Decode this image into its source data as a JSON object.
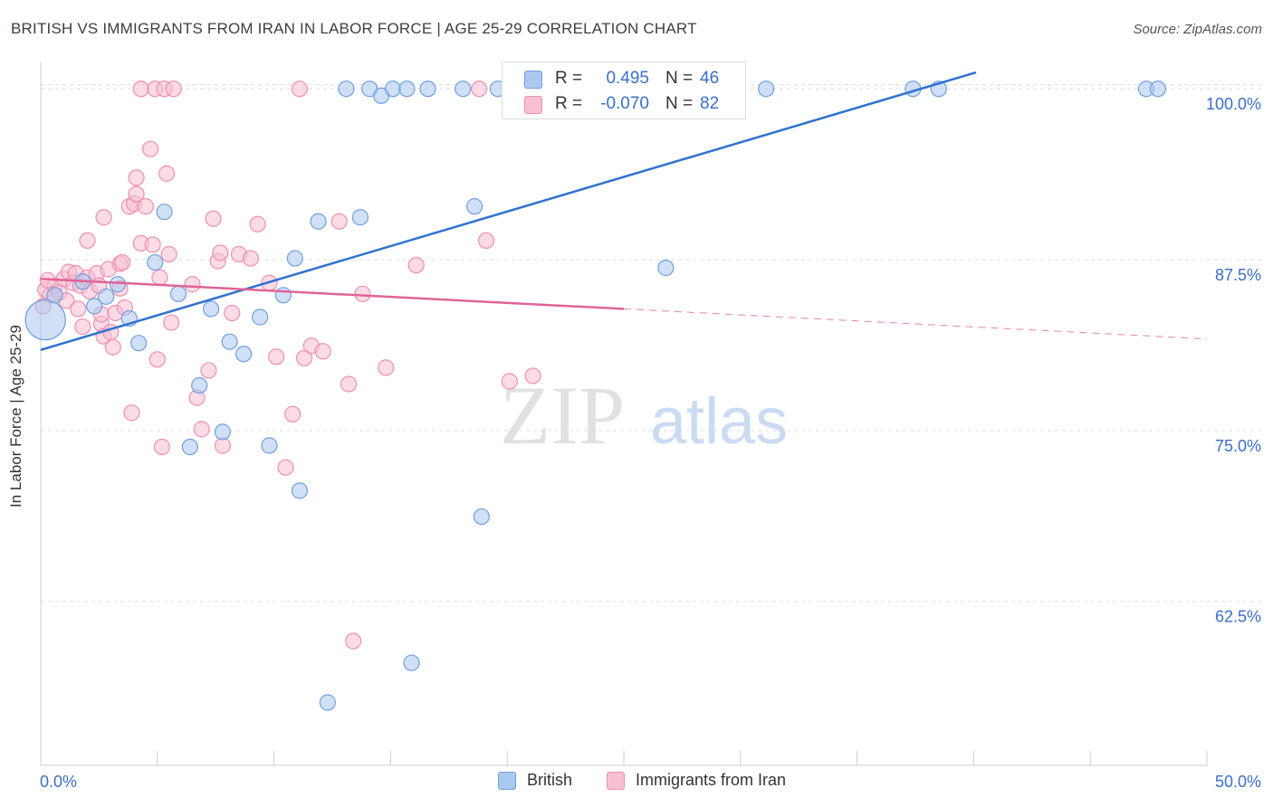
{
  "header": {
    "title": "BRITISH VS IMMIGRANTS FROM IRAN IN LABOR FORCE | AGE 25-29 CORRELATION CHART",
    "source": "Source: ZipAtlas.com"
  },
  "watermark": {
    "zip": "ZIP",
    "atlas": "atlas"
  },
  "legend_top": {
    "rows": [
      {
        "r_label": "R =",
        "r_value": "0.495",
        "n_label": "N =",
        "n_value": "46"
      },
      {
        "r_label": "R =",
        "r_value": "-0.070",
        "n_label": "N =",
        "n_value": "82"
      }
    ]
  },
  "legend_bottom": {
    "british": "British",
    "iran": "Immigrants from Iran"
  },
  "colors": {
    "british_fill": "#aac8f0",
    "british_stroke": "#6f9fe0",
    "british_line": "#2f72d0",
    "iran_fill": "#f7bfd2",
    "iran_stroke": "#ee8fb0",
    "iran_line": "#e06496",
    "axis_text": "#3a6fc8",
    "grid": "#dddddd"
  },
  "chart_data": {
    "type": "scatter",
    "title": "BRITISH VS IMMIGRANTS FROM IRAN IN LABOR FORCE | AGE 25-29 CORRELATION CHART",
    "xlabel": "",
    "ylabel": "In Labor Force | Age 25-29",
    "xlim": [
      0,
      50
    ],
    "ylim": [
      50.5,
      102
    ],
    "x_tick_labels": [
      "0.0%",
      "50.0%"
    ],
    "y_ticks": [
      62.5,
      75.0,
      87.5,
      100.0
    ],
    "y_tick_labels": [
      "62.5%",
      "75.0%",
      "87.5%",
      "100.0%"
    ],
    "grid": true,
    "legend_placement": "bottom",
    "series": [
      {
        "name": "British",
        "r": 0.495,
        "n": 46,
        "trend": {
          "x": [
            0,
            40.1
          ],
          "y": [
            80.9,
            101.2
          ]
        },
        "points": [
          [
            0.2,
            83.1,
            2.6
          ],
          [
            0.6,
            84.9,
            1
          ],
          [
            1.8,
            85.9,
            1
          ],
          [
            2.8,
            84.8,
            1
          ],
          [
            3.3,
            85.7,
            1
          ],
          [
            2.3,
            84.1,
            1
          ],
          [
            3.8,
            83.2,
            1
          ],
          [
            4.2,
            81.4,
            1
          ],
          [
            4.9,
            87.3,
            1
          ],
          [
            5.3,
            91.0,
            1
          ],
          [
            5.9,
            85.0,
            1
          ],
          [
            6.4,
            73.8,
            1
          ],
          [
            6.8,
            78.3,
            1
          ],
          [
            7.3,
            83.9,
            1
          ],
          [
            8.1,
            81.5,
            1
          ],
          [
            7.8,
            74.9,
            1
          ],
          [
            8.7,
            80.6,
            1
          ],
          [
            9.4,
            83.3,
            1
          ],
          [
            9.8,
            73.9,
            1
          ],
          [
            10.4,
            84.9,
            1
          ],
          [
            10.9,
            87.6,
            1
          ],
          [
            11.1,
            70.6,
            1
          ],
          [
            11.9,
            90.3,
            1
          ],
          [
            12.3,
            55.1,
            1
          ],
          [
            13.1,
            100.0,
            1
          ],
          [
            13.7,
            90.6,
            1
          ],
          [
            14.1,
            100.0,
            1
          ],
          [
            14.6,
            99.5,
            1
          ],
          [
            15.1,
            100.0,
            1
          ],
          [
            15.7,
            100.0,
            1
          ],
          [
            15.9,
            58.0,
            1
          ],
          [
            16.6,
            100.0,
            1
          ],
          [
            18.1,
            100.0,
            1
          ],
          [
            18.6,
            91.4,
            1
          ],
          [
            18.9,
            68.7,
            1
          ],
          [
            19.6,
            100.0,
            1
          ],
          [
            21.1,
            100.0,
            1
          ],
          [
            24.1,
            100.0,
            1
          ],
          [
            25.8,
            100.0,
            1
          ],
          [
            26.8,
            86.9,
            1
          ],
          [
            28.1,
            100.0,
            1
          ],
          [
            31.1,
            100.0,
            1
          ],
          [
            37.4,
            100.0,
            1
          ],
          [
            38.5,
            100.0,
            1
          ],
          [
            47.4,
            100.0,
            1
          ],
          [
            47.9,
            100.0,
            1
          ]
        ]
      },
      {
        "name": "Immigrants from Iran",
        "r": -0.07,
        "n": 82,
        "trend": {
          "x": [
            0,
            25.0
          ],
          "y": [
            86.1,
            83.9
          ]
        },
        "trend_dashed": {
          "x": [
            25.0,
            50.0
          ],
          "y": [
            83.9,
            81.7
          ]
        },
        "points": [
          [
            0.2,
            85.3,
            1
          ],
          [
            0.4,
            84.9,
            1
          ],
          [
            0.6,
            85.6,
            1
          ],
          [
            0.8,
            85.1,
            1
          ],
          [
            1.0,
            86.1,
            1
          ],
          [
            1.1,
            84.5,
            1
          ],
          [
            1.2,
            86.6,
            1
          ],
          [
            1.4,
            85.8,
            1
          ],
          [
            1.5,
            86.5,
            1
          ],
          [
            1.6,
            83.9,
            1
          ],
          [
            1.7,
            85.6,
            1
          ],
          [
            1.8,
            82.6,
            1
          ],
          [
            2.0,
            86.2,
            1
          ],
          [
            2.1,
            85.2,
            1
          ],
          [
            2.0,
            88.9,
            1
          ],
          [
            2.4,
            86.5,
            1
          ],
          [
            2.5,
            85.6,
            1
          ],
          [
            2.6,
            82.8,
            1
          ],
          [
            2.6,
            83.5,
            1
          ],
          [
            2.7,
            81.9,
            1
          ],
          [
            2.7,
            90.6,
            1
          ],
          [
            2.9,
            86.8,
            1
          ],
          [
            3.0,
            82.2,
            1
          ],
          [
            3.1,
            81.1,
            1
          ],
          [
            3.2,
            83.6,
            1
          ],
          [
            3.4,
            85.4,
            1
          ],
          [
            3.4,
            87.2,
            1
          ],
          [
            3.5,
            87.3,
            1
          ],
          [
            3.6,
            84.0,
            1
          ],
          [
            3.8,
            91.4,
            1
          ],
          [
            3.9,
            76.3,
            1
          ],
          [
            4.0,
            91.6,
            1
          ],
          [
            4.1,
            92.3,
            1
          ],
          [
            4.1,
            93.5,
            1
          ],
          [
            4.3,
            88.7,
            1
          ],
          [
            4.3,
            100.0,
            1
          ],
          [
            4.5,
            91.4,
            1
          ],
          [
            4.7,
            95.6,
            1
          ],
          [
            4.8,
            88.6,
            1
          ],
          [
            4.9,
            100.0,
            1
          ],
          [
            5.0,
            80.2,
            1
          ],
          [
            5.1,
            86.2,
            1
          ],
          [
            5.2,
            73.8,
            1
          ],
          [
            5.3,
            100.0,
            1
          ],
          [
            5.4,
            93.8,
            1
          ],
          [
            5.5,
            87.9,
            1
          ],
          [
            5.6,
            82.9,
            1
          ],
          [
            5.7,
            100.0,
            1
          ],
          [
            6.5,
            85.7,
            1
          ],
          [
            6.7,
            77.4,
            1
          ],
          [
            6.9,
            75.1,
            1
          ],
          [
            7.2,
            79.4,
            1
          ],
          [
            7.4,
            90.5,
            1
          ],
          [
            7.6,
            87.4,
            1
          ],
          [
            7.7,
            88.0,
            1
          ],
          [
            7.8,
            73.9,
            1
          ],
          [
            8.2,
            83.6,
            1
          ],
          [
            8.5,
            87.9,
            1
          ],
          [
            9.0,
            87.6,
            1
          ],
          [
            9.3,
            90.1,
            1
          ],
          [
            9.8,
            85.8,
            1
          ],
          [
            10.1,
            80.4,
            1
          ],
          [
            10.5,
            72.3,
            1
          ],
          [
            10.8,
            76.2,
            1
          ],
          [
            11.1,
            100.0,
            1
          ],
          [
            11.3,
            80.3,
            1
          ],
          [
            11.6,
            81.2,
            1
          ],
          [
            12.1,
            80.8,
            1
          ],
          [
            12.8,
            90.3,
            1
          ],
          [
            13.2,
            78.4,
            1
          ],
          [
            13.4,
            59.6,
            1
          ],
          [
            13.8,
            85.0,
            1
          ],
          [
            14.8,
            79.6,
            1
          ],
          [
            16.1,
            87.1,
            1
          ],
          [
            18.8,
            100.0,
            1
          ],
          [
            19.1,
            88.9,
            1
          ],
          [
            20.1,
            78.6,
            1
          ],
          [
            21.1,
            79.0,
            1
          ],
          [
            26.1,
            100.0,
            1
          ],
          [
            27.1,
            100.0,
            1
          ],
          [
            0.1,
            84.1,
            1
          ],
          [
            0.3,
            86.0,
            1
          ]
        ]
      }
    ]
  }
}
